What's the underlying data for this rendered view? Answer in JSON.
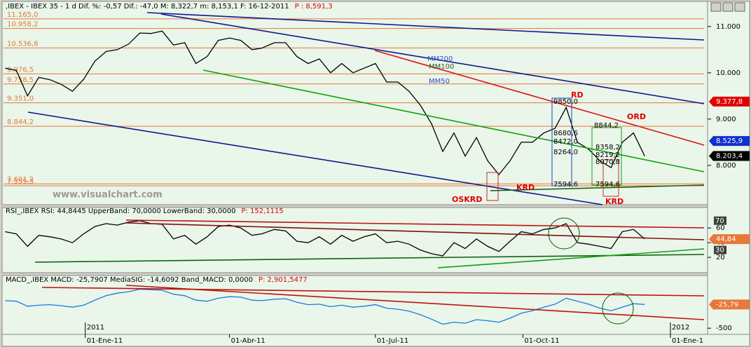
{
  "chart_data": [
    {
      "type": "line",
      "title": "‚IBEX - IBEX 35 - 1 d Dif. %: -0,57 Dif.: -47,0 M: 8,322,7 m: 8,153,1 F: 16-12-2011",
      "subtitle": "P : 8,591,3",
      "x": [
        "2010-11-12",
        "2010-11-19",
        "2010-11-26",
        "2010-12-03",
        "2010-12-10",
        "2010-12-17",
        "2010-12-24",
        "2010-12-31",
        "2011-01-07",
        "2011-01-14",
        "2011-01-21",
        "2011-01-28",
        "2011-02-04",
        "2011-02-11",
        "2011-02-18",
        "2011-02-25",
        "2011-03-04",
        "2011-03-11",
        "2011-03-18",
        "2011-03-25",
        "2011-04-01",
        "2011-04-08",
        "2011-04-15",
        "2011-04-21",
        "2011-04-29",
        "2011-05-06",
        "2011-05-13",
        "2011-05-20",
        "2011-05-27",
        "2011-06-03",
        "2011-06-10",
        "2011-06-17",
        "2011-06-24",
        "2011-07-01",
        "2011-07-08",
        "2011-07-15",
        "2011-07-22",
        "2011-07-29",
        "2011-08-05",
        "2011-08-12",
        "2011-08-19",
        "2011-08-26",
        "2011-09-02",
        "2011-09-09",
        "2011-09-16",
        "2011-09-23",
        "2011-09-30",
        "2011-10-07",
        "2011-10-14",
        "2011-10-21",
        "2011-10-28",
        "2011-11-04",
        "2011-11-11",
        "2011-11-18",
        "2011-11-25",
        "2011-12-02",
        "2011-12-09",
        "2011-12-16"
      ],
      "xlim": [
        "2010-11-11",
        "2012-01-22"
      ],
      "values": [
        10100,
        10050,
        9500,
        9900,
        9850,
        9750,
        9600,
        9860,
        10250,
        10460,
        10500,
        10620,
        10860,
        10850,
        10900,
        10600,
        10650,
        10200,
        10350,
        10700,
        10750,
        10700,
        10500,
        10530,
        10650,
        10650,
        10350,
        10200,
        10300,
        10000,
        10200,
        10000,
        10100,
        10200,
        9800,
        9800,
        9600,
        9300,
        8900,
        8300,
        8700,
        8200,
        8600,
        8100,
        7800,
        8100,
        8500,
        8500,
        8700,
        8800,
        9250,
        8500,
        8350,
        8100,
        7950,
        8500,
        8700,
        8200
      ],
      "color": "#000000",
      "ylim": [
        7150,
        11300
      ],
      "yticks": [
        {
          "value": 8000,
          "label": "8.000"
        },
        {
          "value": 9000,
          "label": "9.000"
        },
        {
          "value": 10000,
          "label": "10.000"
        },
        {
          "value": 11000,
          "label": "11.000"
        }
      ],
      "levels": [
        {
          "value": 11165,
          "label": "11.165,0"
        },
        {
          "value": 10958.2,
          "label": "10.958,2"
        },
        {
          "value": 10536.8,
          "label": "10.536,8"
        },
        {
          "value": 9976.5,
          "label": "9.976,5"
        },
        {
          "value": 9758.5,
          "label": "9.758,5"
        },
        {
          "value": 9351,
          "label": "9.351,0"
        },
        {
          "value": 8844.2,
          "label": "8.844,2"
        },
        {
          "value": 7601.2,
          "label": "7.601,2"
        },
        {
          "value": 7559.3,
          "label": "7.559,3"
        }
      ],
      "level_color": "#e8773a",
      "badges": [
        {
          "value": 9377.8,
          "label": "9.377,8",
          "color": "#e00000"
        },
        {
          "value": 8525.9,
          "label": "8.525,9",
          "color": "#1030d0"
        },
        {
          "value": 8203.4,
          "label": "8.203,4",
          "color": "#000000"
        }
      ],
      "annotations": [
        "RD",
        "ORD",
        "KRD",
        "KRD",
        "OSKRD",
        "MM200",
        "MM100",
        "MM50",
        "9850,0",
        "8844,2",
        "8680,6",
        "8472,0",
        "8264,0",
        "8358,2",
        "8219,2",
        "8070,8",
        "7594,6",
        "7594,6",
        "www.visualchart.com"
      ]
    },
    {
      "type": "line",
      "title": "RSI_,IBEX RSI: 44,8445 UpperBand: 70,0000 LowerBand: 30,0000",
      "subtitle": "P: 152,1115",
      "values": [
        55,
        52,
        35,
        50,
        48,
        45,
        40,
        52,
        62,
        66,
        64,
        68,
        70,
        66,
        65,
        45,
        50,
        38,
        48,
        62,
        64,
        60,
        50,
        52,
        58,
        56,
        42,
        40,
        48,
        38,
        50,
        42,
        48,
        52,
        40,
        42,
        38,
        30,
        25,
        22,
        40,
        32,
        45,
        35,
        28,
        42,
        55,
        52,
        58,
        60,
        66,
        40,
        38,
        35,
        32,
        55,
        58,
        45
      ],
      "color": "#000000",
      "ylim": [
        0,
        87
      ],
      "yticks": [
        20,
        40,
        60
      ],
      "band_labels": [
        70,
        30
      ],
      "badges": [
        {
          "value": 44.84,
          "label": "44,84",
          "color": "#e8773a"
        }
      ]
    },
    {
      "type": "line",
      "title": "MACD_,IBEX MACD: -25,7907 MediaSIG: -14,6092 Band_MACD: 0,0000",
      "subtitle": "P: 2,901,5477",
      "values": [
        50,
        40,
        -60,
        -40,
        -30,
        -50,
        -80,
        -40,
        60,
        150,
        200,
        230,
        280,
        270,
        260,
        180,
        150,
        60,
        40,
        100,
        130,
        120,
        60,
        50,
        80,
        90,
        20,
        -30,
        -20,
        -70,
        -40,
        -80,
        -60,
        -30,
        -100,
        -120,
        -160,
        -230,
        -320,
        -420,
        -380,
        -400,
        -330,
        -350,
        -380,
        -300,
        -200,
        -150,
        -80,
        -20,
        100,
        40,
        -20,
        -100,
        -150,
        -80,
        -10,
        -26
      ],
      "color": "#1e78e0",
      "ylim": [
        -610,
        540
      ],
      "yticks": [
        -500
      ],
      "badges": [
        {
          "value": -25.79,
          "label": "-25,79",
          "color": "#e8773a"
        }
      ],
      "xticks": [
        {
          "value": "2011-01-01",
          "label": "01-Ene-11"
        },
        {
          "value": "2011-04-01",
          "label": "01-Abr-11"
        },
        {
          "value": "2011-07-01",
          "label": "01-Jul-11"
        },
        {
          "value": "2011-10-01",
          "label": "01-Oct-11"
        },
        {
          "value": "2012-01-01",
          "label": "01-Ene-1"
        }
      ],
      "year_labels": [
        {
          "value": "2011-01-01",
          "label": "2011"
        },
        {
          "value": "2012-01-01",
          "label": "2012"
        }
      ]
    }
  ]
}
